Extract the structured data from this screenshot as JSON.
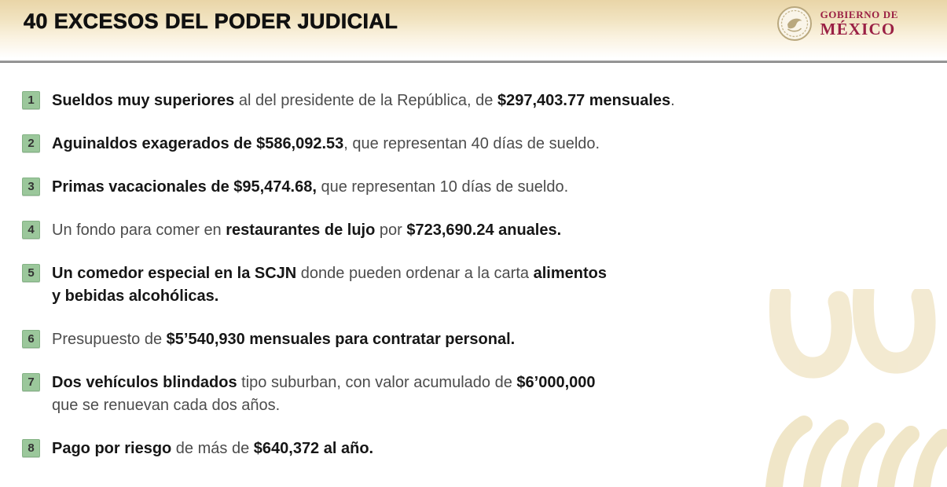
{
  "header": {
    "title": "40 EXCESOS DEL PODER JUDICIAL",
    "logo": {
      "line1": "GOBIERNO DE",
      "line2": "MÉXICO"
    }
  },
  "list": {
    "items": [
      {
        "number": "1",
        "segments": [
          {
            "bold": true,
            "text": "Sueldos muy superiores"
          },
          {
            "bold": false,
            "text": " al del presidente de la República, de "
          },
          {
            "bold": true,
            "text": "$297,403.77 mensuales"
          },
          {
            "bold": false,
            "text": "."
          }
        ]
      },
      {
        "number": "2",
        "segments": [
          {
            "bold": true,
            "text": "Aguinaldos exagerados de $586,092.53"
          },
          {
            "bold": false,
            "text": ", que representan 40 días de sueldo."
          }
        ]
      },
      {
        "number": "3",
        "segments": [
          {
            "bold": true,
            "text": "Primas vacacionales de $95,474.68,"
          },
          {
            "bold": false,
            "text": " que representan 10 días de sueldo."
          }
        ]
      },
      {
        "number": "4",
        "segments": [
          {
            "bold": false,
            "text": "Un fondo para comer en "
          },
          {
            "bold": true,
            "text": "restaurantes de lujo"
          },
          {
            "bold": false,
            "text": " por "
          },
          {
            "bold": true,
            "text": "$723,690.24 anuales."
          }
        ]
      },
      {
        "number": "5",
        "segments": [
          {
            "bold": true,
            "text": "Un comedor especial en la SCJN"
          },
          {
            "bold": false,
            "text": " donde pueden ordenar a la carta "
          },
          {
            "bold": true,
            "text": "alimentos\ny bebidas alcohólicas."
          }
        ]
      },
      {
        "number": "6",
        "segments": [
          {
            "bold": false,
            "text": "Presupuesto de "
          },
          {
            "bold": true,
            "text": "$5’540,930 mensuales para contratar personal."
          }
        ]
      },
      {
        "number": "7",
        "segments": [
          {
            "bold": true,
            "text": "Dos vehículos blindados"
          },
          {
            "bold": false,
            "text": " tipo suburban, con valor acumulado de "
          },
          {
            "bold": true,
            "text": "$6’000,000"
          },
          {
            "bold": false,
            "text": "\nque se renuevan cada dos años."
          }
        ]
      },
      {
        "number": "8",
        "segments": [
          {
            "bold": true,
            "text": "Pago por riesgo"
          },
          {
            "bold": false,
            "text": " de más de "
          },
          {
            "bold": true,
            "text": "$640,372 al año."
          }
        ]
      }
    ]
  },
  "colors": {
    "badge_green": "#9bc79b",
    "bold_text": "#161616",
    "regular_text": "#4c4c4c",
    "logo_maroon": "#9a2044",
    "header_tan": "#e9d5a7",
    "watermark_tan": "#f2e8cd",
    "divider_gray": "#7c7c7c"
  }
}
